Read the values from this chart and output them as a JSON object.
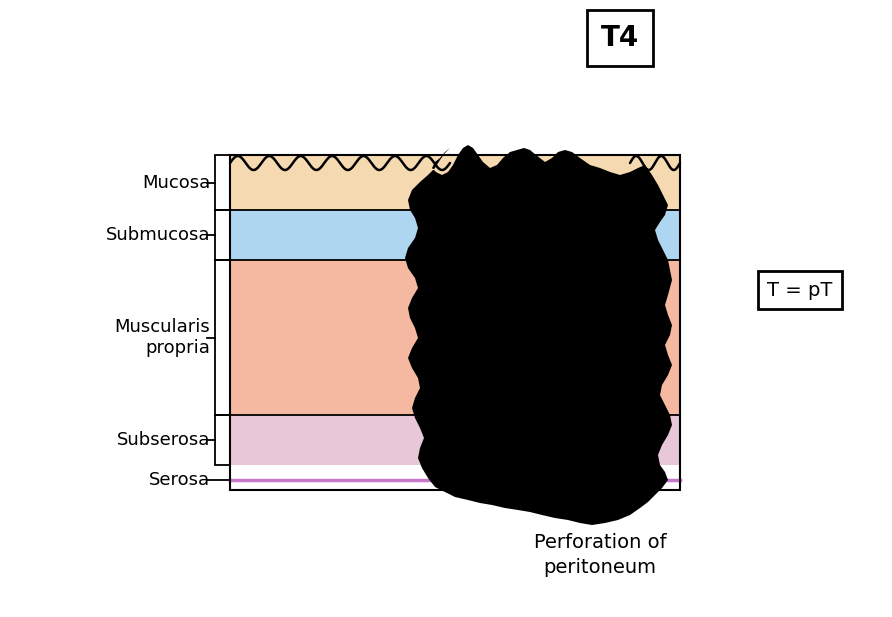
{
  "title": "T4",
  "t_pt_label": "T = pT",
  "perforation_label": "Perforation of\nperitoneum",
  "layer_mucosa_color": "#F5D9B0",
  "layer_submucosa_color": "#AED6F1",
  "layer_muscularis_color": "#F5B8A0",
  "layer_subserosa_color": "#E8C8D8",
  "serosa_line_color": "#C878C8",
  "outline_color": "#000000",
  "background_color": "#ffffff",
  "tumour_color": "#000000",
  "fig_width": 8.92,
  "fig_height": 6.17,
  "dpi": 100
}
